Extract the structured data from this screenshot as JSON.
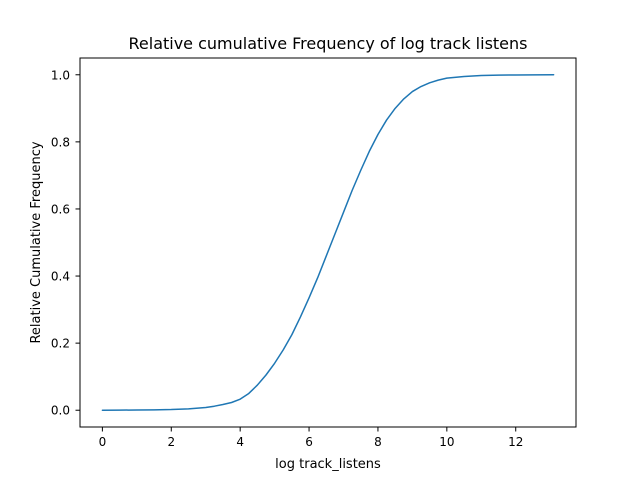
{
  "chart_data": {
    "type": "line",
    "title": "Relative cumulative Frequency of log track listens",
    "xlabel": "log track_listens",
    "ylabel": "Relative Cumulative Frequency",
    "xlim": [
      -0.65,
      13.75
    ],
    "ylim": [
      -0.05,
      1.05
    ],
    "xticks": [
      0,
      2,
      4,
      6,
      8,
      10,
      12
    ],
    "yticks": [
      0.0,
      0.2,
      0.4,
      0.6,
      0.8,
      1.0
    ],
    "grid": false,
    "series": [
      {
        "color": "#1f77b4",
        "x": [
          0,
          0.5,
          1,
          1.5,
          2,
          2.5,
          3,
          3.25,
          3.5,
          3.75,
          4,
          4.25,
          4.5,
          4.75,
          5,
          5.25,
          5.5,
          5.75,
          6,
          6.25,
          6.5,
          6.75,
          7,
          7.25,
          7.5,
          7.75,
          8,
          8.25,
          8.5,
          8.75,
          9,
          9.25,
          9.5,
          9.75,
          10,
          10.5,
          11,
          11.5,
          12,
          12.5,
          13.1
        ],
        "y": [
          0.0,
          0.0003,
          0.0007,
          0.0012,
          0.002,
          0.004,
          0.008,
          0.012,
          0.017,
          0.023,
          0.033,
          0.05,
          0.075,
          0.105,
          0.14,
          0.18,
          0.225,
          0.278,
          0.335,
          0.395,
          0.46,
          0.525,
          0.59,
          0.655,
          0.715,
          0.772,
          0.822,
          0.865,
          0.9,
          0.928,
          0.95,
          0.965,
          0.976,
          0.984,
          0.99,
          0.995,
          0.998,
          0.999,
          0.9995,
          0.9998,
          1.0
        ]
      }
    ]
  }
}
